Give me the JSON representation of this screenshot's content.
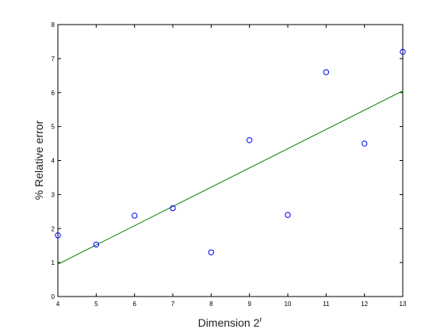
{
  "chart_data": {
    "type": "scatter",
    "title": "",
    "xlabel": "Dimension 2",
    "xlabel_superscript": "r",
    "ylabel": "% Relative error",
    "xlim": [
      4,
      13
    ],
    "ylim": [
      0,
      8
    ],
    "xticks": [
      "4",
      "5",
      "6",
      "7",
      "8",
      "9",
      "10",
      "11",
      "12",
      "13"
    ],
    "yticks": [
      "0",
      "1",
      "2",
      "3",
      "4",
      "5",
      "6",
      "7",
      "8"
    ],
    "grid": false,
    "legend": "none",
    "series": [
      {
        "kind": "scatter",
        "marker": "circle-open",
        "color": "#0000ff",
        "x": [
          4,
          5,
          6,
          7,
          8,
          9,
          10,
          11,
          12,
          13
        ],
        "y": [
          1.8,
          1.53,
          2.38,
          2.6,
          1.3,
          4.6,
          2.4,
          6.6,
          4.5,
          7.2
        ]
      },
      {
        "kind": "line",
        "color": "#008000",
        "x": [
          4,
          13
        ],
        "y": [
          0.95,
          6.05
        ]
      }
    ]
  }
}
